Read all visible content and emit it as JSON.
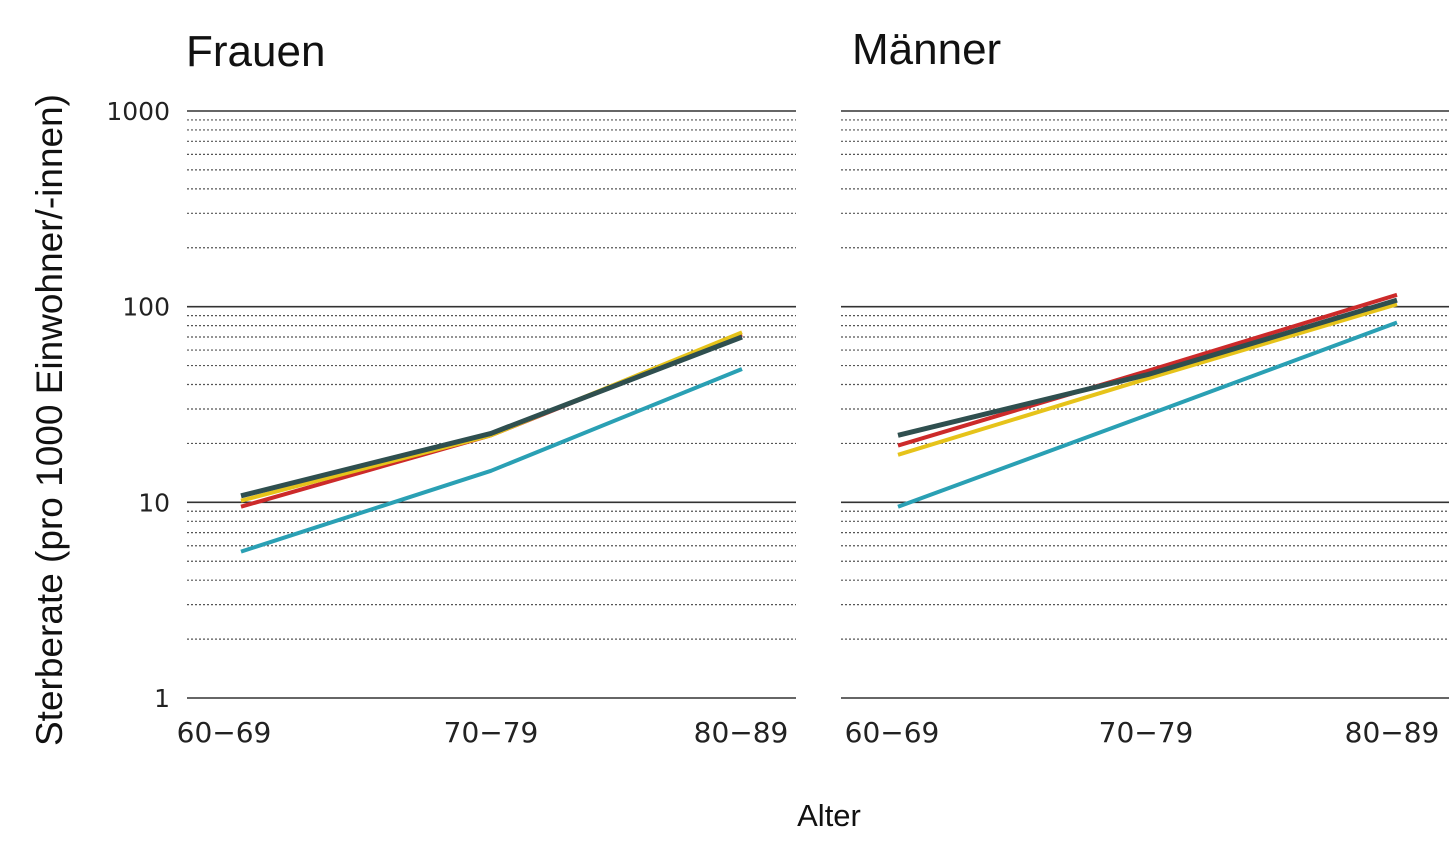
{
  "y_axis_label": "Sterberate (pro 1000 Einwohner/-innen)",
  "x_axis_label": "Alter",
  "chart_data": [
    {
      "type": "line",
      "title": "Frauen",
      "categories": [
        "60−69",
        "70−79",
        "80−89"
      ],
      "yscale": "log",
      "ylim": [
        1,
        1000
      ],
      "yticks": [
        "1",
        "10",
        "100",
        "1000"
      ],
      "grid": true,
      "series": [
        {
          "color": "#cc2a2a",
          "values": [
            9.5,
            22,
            72
          ]
        },
        {
          "color": "#e6c31a",
          "values": [
            10.2,
            22,
            74
          ]
        },
        {
          "color": "#2aa0b4",
          "values": [
            5.6,
            14.5,
            48
          ]
        },
        {
          "color": "#2f4f4f",
          "values": [
            10.8,
            22.5,
            70
          ]
        }
      ]
    },
    {
      "type": "line",
      "title": "Männer",
      "categories": [
        "60−69",
        "70−79",
        "80−89"
      ],
      "yscale": "log",
      "ylim": [
        1,
        1000
      ],
      "grid": true,
      "series": [
        {
          "color": "#cc2a2a",
          "values": [
            19.5,
            47,
            115
          ]
        },
        {
          "color": "#e6c31a",
          "values": [
            17.5,
            43,
            103
          ]
        },
        {
          "color": "#2aa0b4",
          "values": [
            9.5,
            28,
            83
          ]
        },
        {
          "color": "#2f4f4f",
          "values": [
            22,
            45,
            108
          ]
        }
      ]
    }
  ]
}
